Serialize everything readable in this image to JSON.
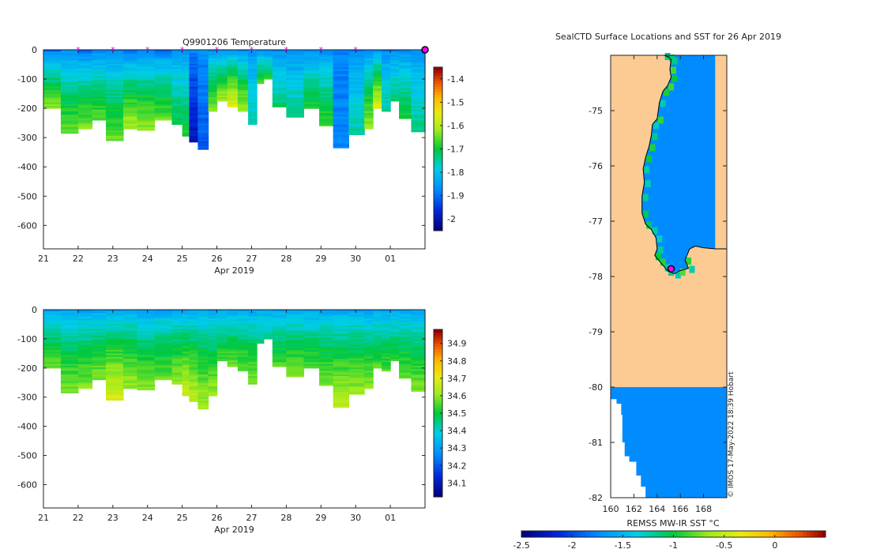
{
  "figure": {
    "sub_title": "Q9901206  Temperature",
    "credit": "© IMOS 17-May-2022 18:39 Hobart"
  },
  "chart_data": [
    {
      "id": "temperature",
      "type": "heatmap",
      "title": "Q9901206  Temperature",
      "xlabel": "Apr 2019",
      "ylabel": "",
      "x_ticks": [
        "21",
        "22",
        "23",
        "24",
        "25",
        "26",
        "27",
        "28",
        "29",
        "30",
        "01"
      ],
      "xlim": [
        21,
        32
      ],
      "y_ticks": [
        0,
        -100,
        -200,
        -300,
        -400,
        -500,
        -600
      ],
      "ylim": [
        -680,
        0
      ],
      "colorbar": {
        "range": [
          -2.05,
          -1.35
        ],
        "ticks": [
          -1.4,
          -1.5,
          -1.6,
          -1.7,
          -1.8,
          -1.9,
          -2
        ],
        "tick_labels": [
          "-1.4",
          "-1.5",
          "-1.6",
          "-1.7",
          "-1.8",
          "-1.9",
          "-2"
        ],
        "colormap": "jet"
      },
      "surface_markers_days": [
        22,
        23,
        24,
        25,
        26,
        27,
        28,
        29,
        30
      ],
      "highlight_day": 32,
      "profiles": [
        {
          "t0": 21.0,
          "t1": 21.5,
          "depth": 200,
          "surf": -1.9,
          "deep": -1.62
        },
        {
          "t0": 21.5,
          "t1": 22.0,
          "depth": 285,
          "surf": -1.88,
          "deep": -1.64
        },
        {
          "t0": 22.0,
          "t1": 22.4,
          "depth": 270,
          "surf": -1.9,
          "deep": -1.63
        },
        {
          "t0": 22.4,
          "t1": 22.8,
          "depth": 240,
          "surf": -1.88,
          "deep": -1.65
        },
        {
          "t0": 22.8,
          "t1": 23.3,
          "depth": 310,
          "surf": -1.88,
          "deep": -1.64
        },
        {
          "t0": 23.3,
          "t1": 23.7,
          "depth": 270,
          "surf": -1.9,
          "deep": -1.6
        },
        {
          "t0": 23.7,
          "t1": 24.2,
          "depth": 275,
          "surf": -1.88,
          "deep": -1.62
        },
        {
          "t0": 24.2,
          "t1": 24.7,
          "depth": 240,
          "surf": -1.9,
          "deep": -1.64
        },
        {
          "t0": 24.7,
          "t1": 25.0,
          "depth": 255,
          "surf": -1.87,
          "deep": -1.7
        },
        {
          "t0": 25.0,
          "t1": 25.2,
          "depth": 295,
          "surf": -1.87,
          "deep": -1.68
        },
        {
          "t0": 25.2,
          "t1": 25.45,
          "depth": 315,
          "surf": -1.88,
          "deep": -2.0
        },
        {
          "t0": 25.45,
          "t1": 25.75,
          "depth": 340,
          "surf": -1.87,
          "deep": -1.92
        },
        {
          "t0": 25.75,
          "t1": 26.0,
          "depth": 210,
          "surf": -1.87,
          "deep": -1.62
        },
        {
          "t0": 26.0,
          "t1": 26.3,
          "depth": 175,
          "surf": -1.88,
          "deep": -1.6
        },
        {
          "t0": 26.3,
          "t1": 26.6,
          "depth": 195,
          "surf": -1.87,
          "deep": -1.55
        },
        {
          "t0": 26.6,
          "t1": 26.9,
          "depth": 210,
          "surf": -1.88,
          "deep": -1.6
        },
        {
          "t0": 26.9,
          "t1": 27.15,
          "depth": 255,
          "surf": -1.87,
          "deep": -1.75
        },
        {
          "t0": 27.15,
          "t1": 27.35,
          "depth": 115,
          "surf": -1.87,
          "deep": -1.66
        },
        {
          "t0": 27.35,
          "t1": 27.6,
          "depth": 100,
          "surf": -1.88,
          "deep": -1.68
        },
        {
          "t0": 27.6,
          "t1": 28.0,
          "depth": 195,
          "surf": -1.88,
          "deep": -1.72
        },
        {
          "t0": 28.0,
          "t1": 28.5,
          "depth": 230,
          "surf": -1.88,
          "deep": -1.73
        },
        {
          "t0": 28.5,
          "t1": 28.95,
          "depth": 200,
          "surf": -1.88,
          "deep": -1.68
        },
        {
          "t0": 28.95,
          "t1": 29.35,
          "depth": 260,
          "surf": -1.88,
          "deep": -1.66
        },
        {
          "t0": 29.35,
          "t1": 29.8,
          "depth": 335,
          "surf": -1.88,
          "deep": -1.88
        },
        {
          "t0": 29.8,
          "t1": 30.25,
          "depth": 290,
          "surf": -1.88,
          "deep": -1.75
        },
        {
          "t0": 30.25,
          "t1": 30.5,
          "depth": 270,
          "surf": -1.87,
          "deep": -1.62
        },
        {
          "t0": 30.5,
          "t1": 30.75,
          "depth": 200,
          "surf": -1.88,
          "deep": -1.55
        },
        {
          "t0": 30.75,
          "t1": 31.0,
          "depth": 210,
          "surf": -1.88,
          "deep": -1.74
        },
        {
          "t0": 31.0,
          "t1": 31.25,
          "depth": 175,
          "surf": -1.88,
          "deep": -1.72
        },
        {
          "t0": 31.25,
          "t1": 31.6,
          "depth": 235,
          "surf": -1.88,
          "deep": -1.68
        },
        {
          "t0": 31.6,
          "t1": 32.0,
          "depth": 280,
          "surf": -1.87,
          "deep": -1.73
        }
      ]
    },
    {
      "id": "salinity",
      "type": "heatmap",
      "title": "",
      "xlabel": "Apr 2019",
      "ylabel": "",
      "x_ticks": [
        "21",
        "22",
        "23",
        "24",
        "25",
        "26",
        "27",
        "28",
        "29",
        "30",
        "01"
      ],
      "xlim": [
        21,
        32
      ],
      "y_ticks": [
        0,
        -100,
        -200,
        -300,
        -400,
        -500,
        -600
      ],
      "ylim": [
        -680,
        0
      ],
      "colorbar": {
        "range": [
          34.02,
          34.98
        ],
        "ticks": [
          34.9,
          34.8,
          34.7,
          34.6,
          34.5,
          34.4,
          34.3,
          34.2,
          34.1
        ],
        "tick_labels": [
          "34.9",
          "34.8",
          "34.7",
          "34.6",
          "34.5",
          "34.4",
          "34.3",
          "34.2",
          "34.1"
        ],
        "colormap": "jet"
      },
      "profiles": [
        {
          "t0": 21.0,
          "t1": 21.5,
          "depth": 200,
          "surf": 34.3,
          "deep": 34.58
        },
        {
          "t0": 21.5,
          "t1": 22.0,
          "depth": 285,
          "surf": 34.3,
          "deep": 34.6
        },
        {
          "t0": 22.0,
          "t1": 22.4,
          "depth": 270,
          "surf": 34.3,
          "deep": 34.6
        },
        {
          "t0": 22.4,
          "t1": 22.8,
          "depth": 240,
          "surf": 34.3,
          "deep": 34.6
        },
        {
          "t0": 22.8,
          "t1": 23.3,
          "depth": 310,
          "surf": 34.3,
          "deep": 34.7
        },
        {
          "t0": 23.3,
          "t1": 23.7,
          "depth": 270,
          "surf": 34.32,
          "deep": 34.62
        },
        {
          "t0": 23.7,
          "t1": 24.2,
          "depth": 275,
          "surf": 34.3,
          "deep": 34.6
        },
        {
          "t0": 24.2,
          "t1": 24.7,
          "depth": 240,
          "surf": 34.3,
          "deep": 34.58
        },
        {
          "t0": 24.7,
          "t1": 25.0,
          "depth": 255,
          "surf": 34.3,
          "deep": 34.62
        },
        {
          "t0": 25.0,
          "t1": 25.2,
          "depth": 295,
          "surf": 34.3,
          "deep": 34.68
        },
        {
          "t0": 25.2,
          "t1": 25.45,
          "depth": 315,
          "surf": 34.3,
          "deep": 34.66
        },
        {
          "t0": 25.45,
          "t1": 25.75,
          "depth": 340,
          "surf": 34.3,
          "deep": 34.64
        },
        {
          "t0": 25.75,
          "t1": 26.0,
          "depth": 295,
          "surf": 34.3,
          "deep": 34.62
        },
        {
          "t0": 26.0,
          "t1": 26.3,
          "depth": 175,
          "surf": 34.3,
          "deep": 34.56
        },
        {
          "t0": 26.3,
          "t1": 26.6,
          "depth": 195,
          "surf": 34.3,
          "deep": 34.58
        },
        {
          "t0": 26.6,
          "t1": 26.9,
          "depth": 210,
          "surf": 34.3,
          "deep": 34.58
        },
        {
          "t0": 26.9,
          "t1": 27.15,
          "depth": 255,
          "surf": 34.3,
          "deep": 34.6
        },
        {
          "t0": 27.15,
          "t1": 27.35,
          "depth": 115,
          "surf": 34.32,
          "deep": 34.46
        },
        {
          "t0": 27.35,
          "t1": 27.6,
          "depth": 100,
          "surf": 34.32,
          "deep": 34.44
        },
        {
          "t0": 27.6,
          "t1": 28.0,
          "depth": 195,
          "surf": 34.3,
          "deep": 34.56
        },
        {
          "t0": 28.0,
          "t1": 28.5,
          "depth": 230,
          "surf": 34.3,
          "deep": 34.6
        },
        {
          "t0": 28.5,
          "t1": 28.95,
          "depth": 200,
          "surf": 34.3,
          "deep": 34.56
        },
        {
          "t0": 28.95,
          "t1": 29.35,
          "depth": 260,
          "surf": 34.3,
          "deep": 34.6
        },
        {
          "t0": 29.35,
          "t1": 29.8,
          "depth": 335,
          "surf": 34.3,
          "deep": 34.66
        },
        {
          "t0": 29.8,
          "t1": 30.25,
          "depth": 290,
          "surf": 34.3,
          "deep": 34.62
        },
        {
          "t0": 30.25,
          "t1": 30.5,
          "depth": 270,
          "surf": 34.3,
          "deep": 34.6
        },
        {
          "t0": 30.5,
          "t1": 30.75,
          "depth": 200,
          "surf": 34.3,
          "deep": 34.56
        },
        {
          "t0": 30.75,
          "t1": 31.0,
          "depth": 210,
          "surf": 34.3,
          "deep": 34.56
        },
        {
          "t0": 31.0,
          "t1": 31.25,
          "depth": 175,
          "surf": 34.3,
          "deep": 34.54
        },
        {
          "t0": 31.25,
          "t1": 31.6,
          "depth": 235,
          "surf": 34.3,
          "deep": 34.58
        },
        {
          "t0": 31.6,
          "t1": 32.0,
          "depth": 280,
          "surf": 34.3,
          "deep": 34.6
        }
      ]
    },
    {
      "id": "sst_map",
      "type": "heatmap",
      "title": "SealCTD Surface Locations and SST for 26 Apr 2019",
      "xlabel": "REMSS MW-IR SST °C",
      "x_ticks": [
        "160",
        "162",
        "164",
        "166",
        "168"
      ],
      "xlim": [
        160,
        170
      ],
      "y_ticks": [
        "-75",
        "-76",
        "-77",
        "-78",
        "-79",
        "-80",
        "-81",
        "-82"
      ],
      "ylim": [
        -82,
        -74.0
      ],
      "colorbar": {
        "range": [
          -2.5,
          0.5
        ],
        "ticks": [
          -2.5,
          -2,
          -1.5,
          -1,
          -0.5,
          0
        ],
        "tick_labels": [
          "-2.5",
          "-2",
          "-1.5",
          "-1",
          "-0.5",
          "0"
        ],
        "colormap": "jet"
      },
      "land_color": "#fccb94",
      "ocean_sst": -1.75,
      "coastal_sst": -1.05,
      "ocean_cutoff_lon": 169.0,
      "coast": [
        [
          164.6,
          -74.0
        ],
        [
          165.0,
          -74.03
        ],
        [
          165.2,
          -74.08
        ],
        [
          165.1,
          -74.25
        ],
        [
          165.2,
          -74.4
        ],
        [
          164.9,
          -74.55
        ],
        [
          164.5,
          -74.65
        ],
        [
          164.2,
          -74.85
        ],
        [
          164.0,
          -75.15
        ],
        [
          163.6,
          -75.25
        ],
        [
          163.5,
          -75.45
        ],
        [
          163.3,
          -75.65
        ],
        [
          163.0,
          -75.85
        ],
        [
          162.8,
          -76.05
        ],
        [
          162.9,
          -76.3
        ],
        [
          162.7,
          -76.55
        ],
        [
          162.7,
          -76.85
        ],
        [
          163.0,
          -77.05
        ],
        [
          163.5,
          -77.15
        ],
        [
          163.9,
          -77.3
        ],
        [
          164.0,
          -77.5
        ],
        [
          163.8,
          -77.62
        ],
        [
          164.2,
          -77.72
        ],
        [
          164.6,
          -77.82
        ],
        [
          164.9,
          -77.9
        ],
        [
          165.5,
          -77.95
        ],
        [
          165.9,
          -77.9
        ],
        [
          166.7,
          -77.85
        ],
        [
          166.4,
          -77.7
        ],
        [
          166.8,
          -77.5
        ],
        [
          167.3,
          -77.45
        ],
        [
          168.0,
          -77.48
        ],
        [
          169.0,
          -77.5
        ],
        [
          170.0,
          -77.5
        ]
      ],
      "ice_shelf_lat": -80.0,
      "ice_shelf_edge": [
        [
          160.0,
          -80.0
        ],
        [
          160.0,
          -80.22
        ],
        [
          160.5,
          -80.22
        ],
        [
          160.5,
          -80.3
        ],
        [
          160.9,
          -80.3
        ],
        [
          160.9,
          -80.5
        ],
        [
          161.0,
          -80.5
        ],
        [
          161.0,
          -80.75
        ],
        [
          161.0,
          -81.0
        ],
        [
          161.2,
          -81.0
        ],
        [
          161.2,
          -81.25
        ],
        [
          161.6,
          -81.25
        ],
        [
          161.6,
          -81.35
        ],
        [
          162.2,
          -81.35
        ],
        [
          162.2,
          -81.6
        ],
        [
          162.6,
          -81.6
        ],
        [
          162.6,
          -81.8
        ],
        [
          163.0,
          -81.8
        ],
        [
          163.0,
          -82.0
        ]
      ],
      "highlight_point": [
        165.2,
        -77.86
      ]
    }
  ]
}
